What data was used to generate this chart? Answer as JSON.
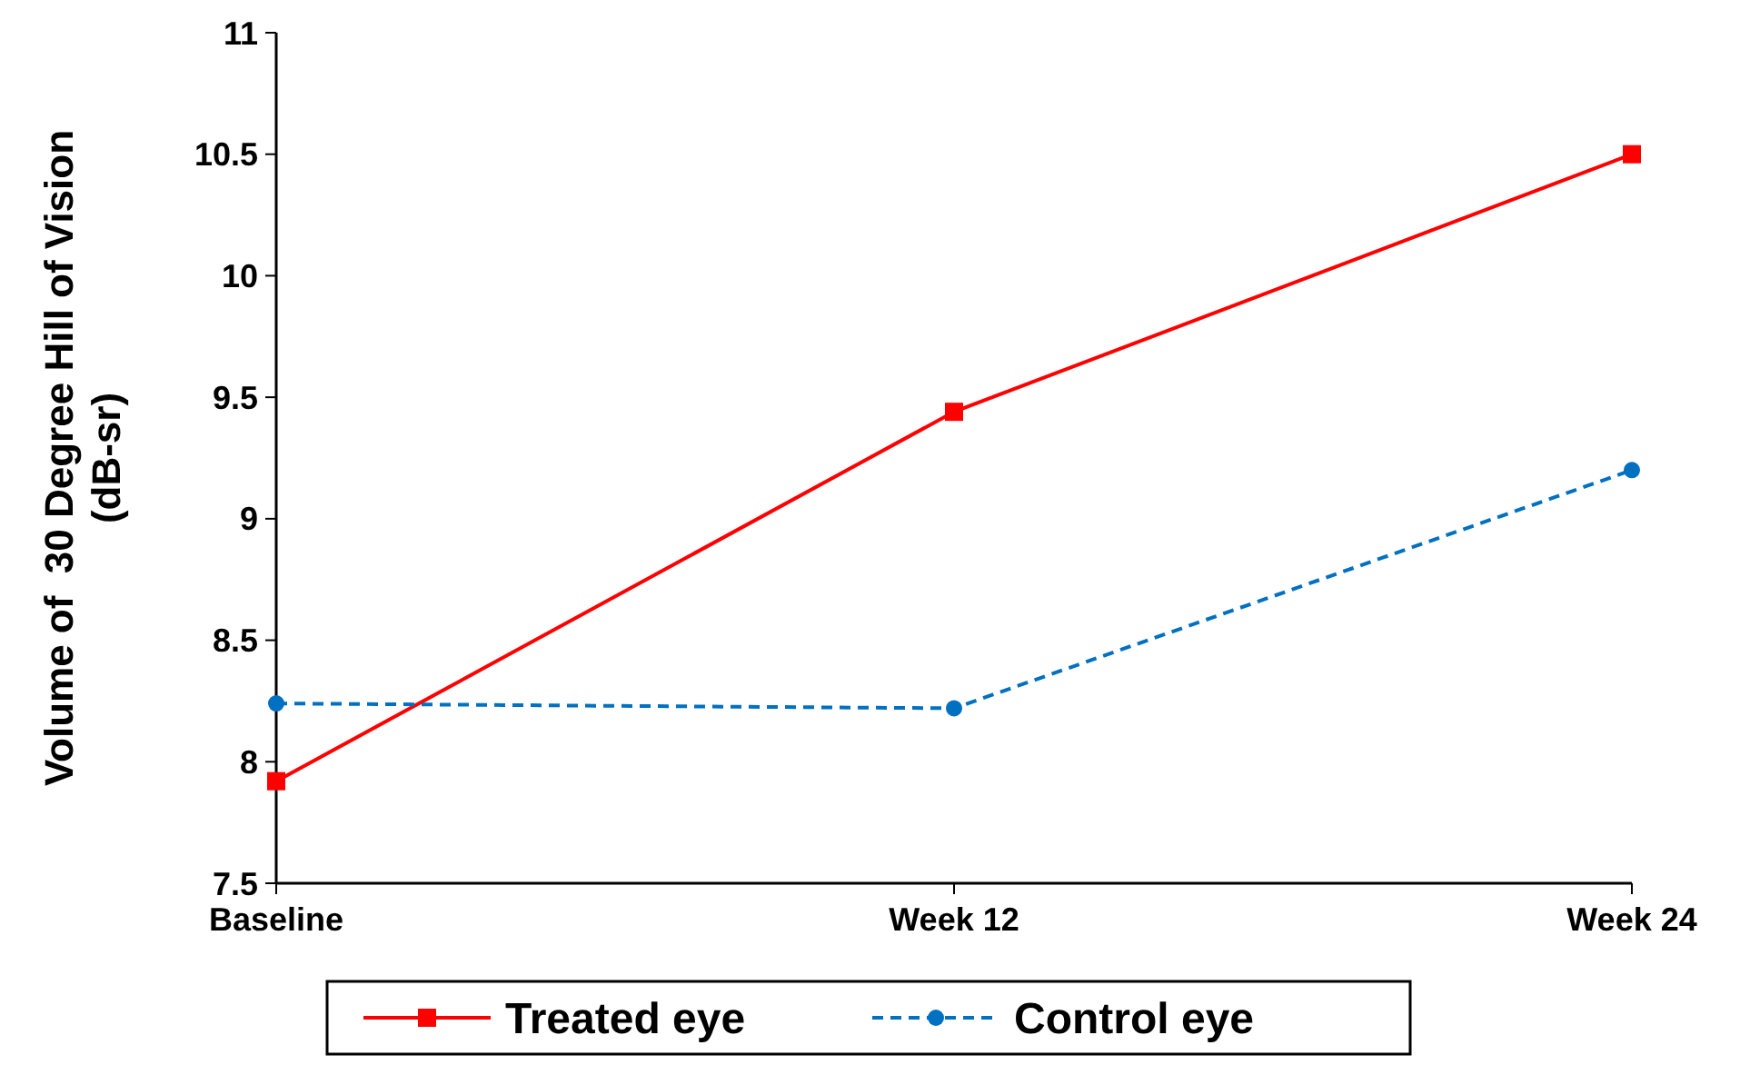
{
  "chart_data": {
    "type": "line",
    "ylabel": "Volume of  30 Degree Hill of Vision\n(dB-sr)",
    "categories": [
      "Baseline",
      "Week 12",
      "Week 24"
    ],
    "ylim": [
      7.5,
      11
    ],
    "yticks": [
      7.5,
      8,
      8.5,
      9,
      9.5,
      10,
      10.5,
      11
    ],
    "grid": false,
    "legend": "bottom",
    "series": [
      {
        "name": "Treated eye",
        "color": "#ff0000",
        "values": [
          7.92,
          9.44,
          10.5
        ],
        "marker": "square",
        "line_style": "solid"
      },
      {
        "name": "Control eye",
        "color": "#0070c0",
        "values": [
          8.24,
          8.22,
          9.2
        ],
        "marker": "circle",
        "line_style": "dashed"
      }
    ]
  }
}
